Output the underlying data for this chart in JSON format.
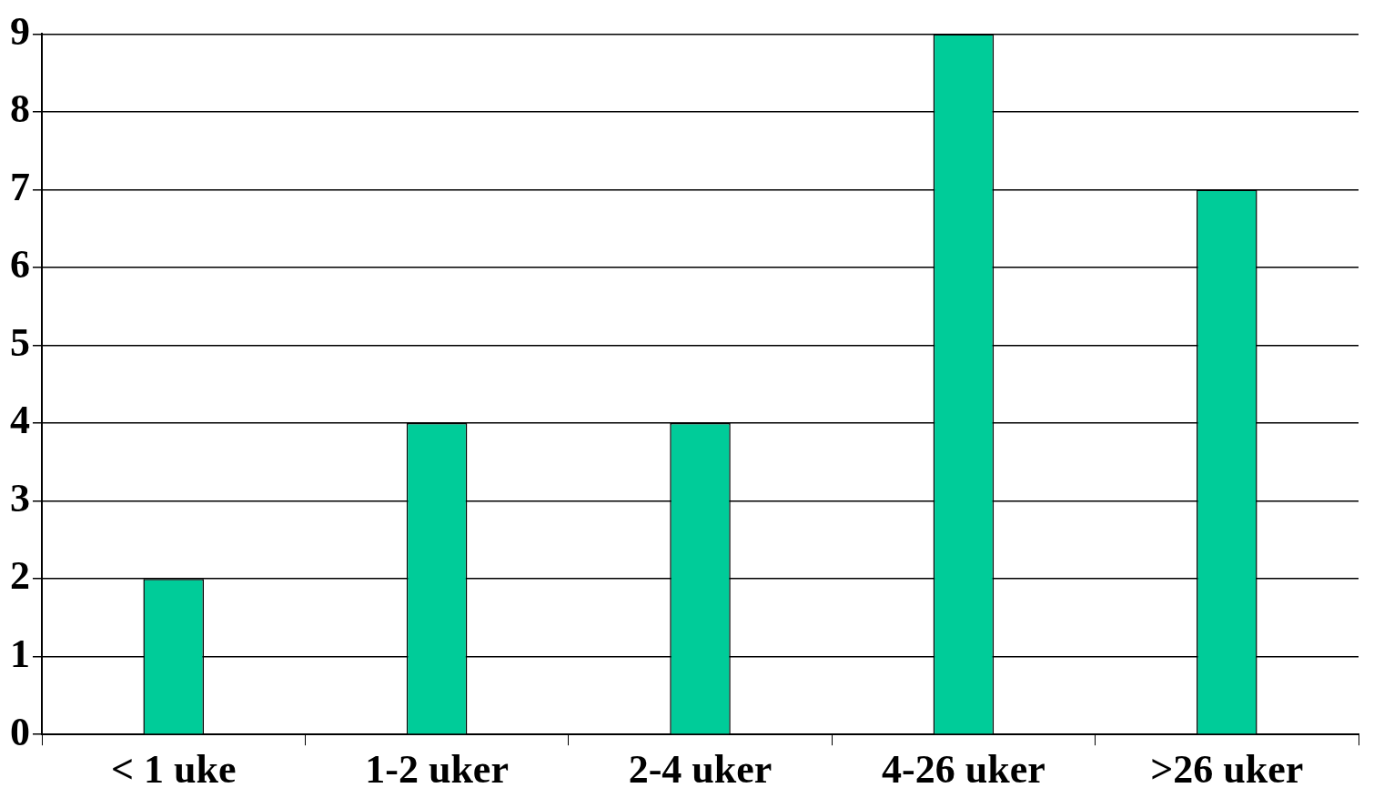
{
  "chart_data": {
    "type": "bar",
    "categories": [
      "< 1 uke",
      "1-2 uker",
      "2-4 uker",
      "4-26 uker",
      ">26 uker"
    ],
    "values": [
      2,
      4,
      4,
      9,
      7
    ],
    "color": "#00cc99",
    "ylim": [
      0,
      9
    ],
    "yticks": [
      0,
      1,
      2,
      3,
      4,
      5,
      6,
      7,
      8,
      9
    ],
    "grid": "y"
  }
}
